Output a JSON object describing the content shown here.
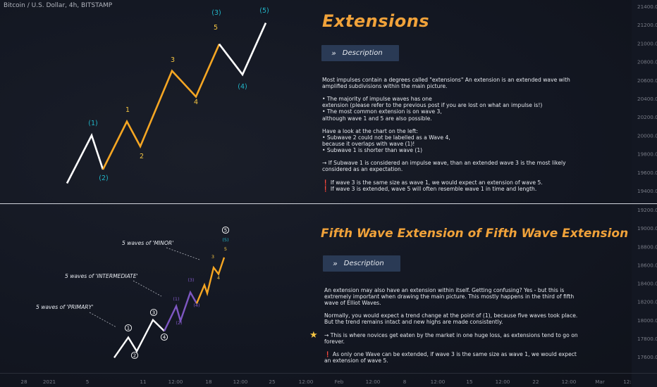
{
  "symbol_label": "Bitcoin / U.S. Dollar, 4h, BITSTAMP",
  "panel1": {
    "title": "Extensions",
    "button_label": "Description",
    "paragraphs": [
      "Most impulses contain a degrees called \"extensions\" An extension is an extended wave with",
      "amplified subdivisions within the main picture.",
      "",
      "• The majority of impulse waves has one",
      "extension (please refer to the previous post if you are lost on what an impulse is!)",
      "• The most common extension is on wave 3,",
      "although wave 1 and 5 are also possible.",
      "",
      "Have a look at the chart on the left:",
      "• Subwave 2 could not be labelled as a Wave 4,",
      "because it overlaps with wave (1)!",
      "• Subwave 1 is shorter than wave (1)",
      "",
      "→ If Subwave 1 is considered an impulse wave, than an extended wave 3 is the most likely",
      "considered as an expectation.",
      "",
      "❗ If wave 3 is the same size as wave 1, we would expect an extension of wave 5.",
      "❗ If wave 3 is extended, wave 5 will often resemble wave 1 in time and length."
    ]
  },
  "panel2": {
    "title": "Fifth Wave Extension of Fifth Wave Extension",
    "button_label": "Description",
    "paragraphs": [
      "An extension may also have an extension within itself. Getting confusing? Yes - but this is",
      "extremely important when drawing the main picture. This mostly happens in the third of fifth",
      "wave of Elliot Waves.",
      "",
      "Normally, you would expect a trend change at the point of (1), because five waves took place.",
      "But the trend remains intact and new highs are made consistently.",
      "",
      "→ This is where novices get eaten by the market in one huge loss, as extensions tend to go on",
      "forever.",
      "",
      "❗ As only one Wave can be extended, if wave 3 is the same size as wave 1, we would expect",
      "an extension of wave 5."
    ]
  },
  "chart_data": {
    "type": "line",
    "colors": {
      "white": "#ffffff",
      "orange": "#f5a623",
      "purple": "#7e57c2",
      "cyan": "#22b6c9",
      "yellow": "#f5c542",
      "axis": "#787b86"
    },
    "price_axis_top": [
      "21400.00",
      "21200.00",
      "21000.00",
      "20800.00",
      "20600.00",
      "20400.00",
      "20200.00",
      "20000.00",
      "19800.00",
      "19600.00",
      "19400.00"
    ],
    "price_axis_bottom": [
      "19200.00",
      "19000.00",
      "18800.00",
      "18600.00",
      "18400.00",
      "18200.00",
      "18000.00",
      "17800.00",
      "17600.00"
    ],
    "time_axis": [
      "28",
      "2021",
      "5",
      "11",
      "12:00",
      "18",
      "12:00",
      "25",
      "12:00",
      "Feb",
      "12:00",
      "8",
      "12:00",
      "15",
      "12:00",
      "22",
      "12:00",
      "Mar",
      "12:"
    ],
    "top_panel": {
      "segments": [
        {
          "color": "white",
          "points": [
            [
              19480,
              0
            ],
            [
              20000,
              1
            ],
            [
              19630,
              2
            ]
          ]
        },
        {
          "color": "orange",
          "points": [
            [
              19630,
              2
            ],
            [
              20150,
              3
            ],
            [
              19880,
              4
            ],
            [
              20700,
              5
            ],
            [
              20420,
              6
            ],
            [
              20990,
              7
            ]
          ]
        },
        {
          "color": "white",
          "points": [
            [
              20990,
              7
            ],
            [
              20660,
              8
            ],
            [
              21220,
              9
            ]
          ]
        }
      ],
      "labels": [
        {
          "text": "(1)",
          "color": "cyan"
        },
        {
          "text": "(2)",
          "color": "cyan"
        },
        {
          "text": "1",
          "color": "yellow"
        },
        {
          "text": "2",
          "color": "yellow"
        },
        {
          "text": "3",
          "color": "yellow"
        },
        {
          "text": "4",
          "color": "yellow"
        },
        {
          "text": "5",
          "color": "yellow"
        },
        {
          "text": "(3)",
          "color": "cyan"
        },
        {
          "text": "(4)",
          "color": "cyan"
        },
        {
          "text": "(5)",
          "color": "cyan"
        }
      ]
    },
    "bottom_panel": {
      "segments": [
        {
          "color": "white",
          "points": [
            [
              17590,
              0
            ],
            [
              17810,
              1
            ],
            [
              17660,
              2
            ],
            [
              18000,
              3
            ],
            [
              17880,
              4
            ]
          ]
        },
        {
          "color": "purple",
          "points": [
            [
              17880,
              4
            ],
            [
              18150,
              5
            ],
            [
              17990,
              6
            ],
            [
              18300,
              7
            ],
            [
              18180,
              8
            ]
          ]
        },
        {
          "color": "orange",
          "points": [
            [
              18180,
              8
            ],
            [
              18380,
              9
            ],
            [
              18290,
              10
            ],
            [
              18570,
              11
            ],
            [
              18500,
              12
            ],
            [
              18680,
              13
            ]
          ]
        }
      ],
      "wave_labels": [
        {
          "text": "1",
          "style": "circle"
        },
        {
          "text": "2",
          "style": "circle"
        },
        {
          "text": "3",
          "style": "circle"
        },
        {
          "text": "4",
          "style": "circle"
        },
        {
          "text": "5",
          "style": "circle"
        },
        {
          "text": "(1)",
          "color": "purple"
        },
        {
          "text": "(2)",
          "color": "purple"
        },
        {
          "text": "(3)",
          "color": "purple"
        },
        {
          "text": "(4)",
          "color": "purple"
        },
        {
          "text": "(5)",
          "color": "cyan"
        },
        {
          "text": "3",
          "color": "yellow"
        },
        {
          "text": "4",
          "color": "yellow"
        },
        {
          "text": "5",
          "color": "yellow"
        }
      ],
      "annotations": [
        {
          "text": "5 waves of 'MINOR'"
        },
        {
          "text": "5 waves of 'INTERMEDIATE'"
        },
        {
          "text": "5 waves of 'PRIMARY'"
        }
      ]
    }
  }
}
